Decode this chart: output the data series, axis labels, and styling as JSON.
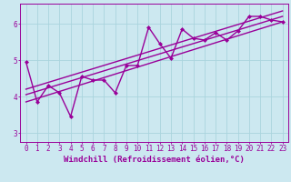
{
  "title": "",
  "xlabel": "Windchill (Refroidissement éolien,°C)",
  "ylabel": "",
  "bg_color": "#cce8f0",
  "line_color": "#990099",
  "grid_color": "#aad4dd",
  "xlim": [
    -0.5,
    23.5
  ],
  "ylim": [
    2.75,
    6.55
  ],
  "xticks": [
    0,
    1,
    2,
    3,
    4,
    5,
    6,
    7,
    8,
    9,
    10,
    11,
    12,
    13,
    14,
    15,
    16,
    17,
    18,
    19,
    20,
    21,
    22,
    23
  ],
  "yticks": [
    3,
    4,
    5,
    6
  ],
  "main_x": [
    0,
    1,
    2,
    3,
    4,
    5,
    6,
    7,
    8,
    9,
    10,
    11,
    12,
    13,
    14,
    15,
    16,
    17,
    18,
    19,
    20,
    21,
    22,
    23
  ],
  "main_y": [
    4.95,
    3.85,
    4.3,
    4.1,
    3.45,
    4.55,
    4.45,
    4.45,
    4.1,
    4.85,
    4.85,
    5.9,
    5.45,
    5.05,
    5.85,
    5.6,
    5.55,
    5.75,
    5.55,
    5.8,
    6.2,
    6.2,
    6.1,
    6.05
  ],
  "trend1_x": [
    0,
    23
  ],
  "trend1_y": [
    3.85,
    6.05
  ],
  "trend2_x": [
    0,
    23
  ],
  "trend2_y": [
    4.05,
    6.2
  ],
  "trend3_x": [
    0,
    23
  ],
  "trend3_y": [
    4.2,
    6.35
  ],
  "line_width": 1.0,
  "xlabel_fontsize": 6.5,
  "tick_fontsize": 5.5,
  "font_family": "monospace"
}
